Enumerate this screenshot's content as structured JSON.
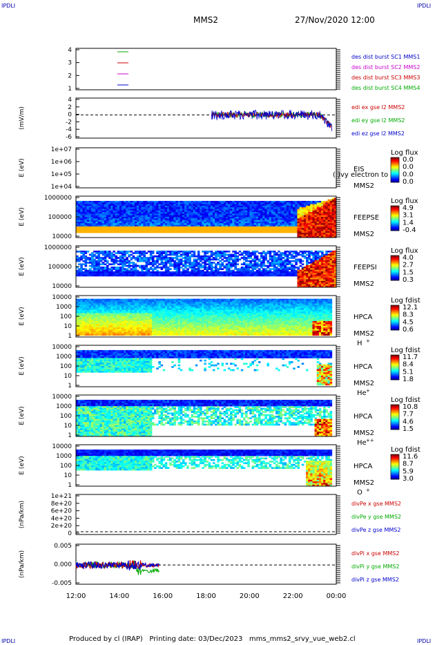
{
  "corners": {
    "tl": "IPDLI",
    "tr": "IPDLI",
    "bl": "IPDLI",
    "br": "IPDLI"
  },
  "header": {
    "mission": "MMS2",
    "datetime": "27/Nov/2020 12:00"
  },
  "footer": {
    "produced_by": "Produced by cl (IRAP)",
    "printing_date": "Printing date: 03/Dec/2023",
    "filename": "mms_mms2_srvy_vue_web2.cl"
  },
  "colors": {
    "blue": "#0000cc",
    "red": "#cc0000",
    "green": "#00aa00",
    "magenta": "#cc00cc"
  },
  "chart_data": [
    {
      "type": "line",
      "id": "des",
      "ylabel": "",
      "yticks": [
        "4",
        "3",
        "2",
        "1"
      ],
      "legend": [
        {
          "name": "des dist burst SC1 MMS1",
          "color": "#0000cc"
        },
        {
          "name": "des dist burst SC2 MMS2",
          "color": "#cc00cc"
        },
        {
          "name": "des dist burst SC3 MMS3",
          "color": "#cc0000"
        },
        {
          "name": "des dist burst SC4 MMS4",
          "color": "#00aa00"
        }
      ]
    },
    {
      "type": "line",
      "id": "edi",
      "ylabel": "(mV/m)",
      "yticks": [
        "4",
        "2",
        "0",
        "-2",
        "-4",
        "-6"
      ],
      "series": [
        {
          "name": "edi ex gse l2 MMS2",
          "color": "#cc0000"
        },
        {
          "name": "edi ey gse l2 MMS2",
          "color": "#00aa00"
        },
        {
          "name": "edi ez gse l2 MMS2",
          "color": "#0000cc"
        }
      ],
      "data_start_hour": 18.25,
      "data_end_hour": 23.8
    },
    {
      "type": "heatmap",
      "id": "eis",
      "ylabel": "E (eV)",
      "yticks": [
        "1e+07",
        "1e+06",
        "1e+05",
        "1e+04"
      ],
      "labels": [
        "EIS",
        "MMS2"
      ],
      "overflow_label": "( )vy electron to",
      "colorbar_title": "Log flux",
      "colorbar_ticks": [
        "0.0",
        "0.0",
        "0.0",
        "0.0"
      ]
    },
    {
      "type": "heatmap",
      "id": "feepse",
      "ylabel": "E (eV)",
      "yticks": [
        "1000000",
        "100000",
        "10000"
      ],
      "labels": [
        "FEEPSE",
        "MMS2"
      ],
      "colorbar_title": "Log flux",
      "colorbar_ticks": [
        "4.9",
        "3.1",
        "1.4",
        "-0.4"
      ]
    },
    {
      "type": "heatmap",
      "id": "feepsi",
      "ylabel": "E (eV)",
      "yticks": [
        "1000000",
        "100000",
        "10000"
      ],
      "labels": [
        "FEEPSI",
        "MMS2"
      ],
      "colorbar_title": "Log flux",
      "colorbar_ticks": [
        "4.0",
        "2.7",
        "1.5",
        "0.3"
      ]
    },
    {
      "type": "heatmap",
      "id": "hpca_h",
      "ylabel": "E (eV)",
      "yticks": [
        "10000",
        "1000",
        "100",
        "10",
        "1"
      ],
      "labels": [
        "HPCA",
        "MMS2"
      ],
      "species": "H",
      "charge": "+",
      "colorbar_title": "Log fdist",
      "colorbar_ticks": [
        "12.1",
        "8.3",
        "4.5",
        "0.6"
      ]
    },
    {
      "type": "heatmap",
      "id": "hpca_he",
      "ylabel": "E (eV)",
      "yticks": [
        "10000",
        "1000",
        "100",
        "10",
        "1"
      ],
      "labels": [
        "HPCA",
        "MMS2"
      ],
      "species": "He",
      "charge": "+",
      "colorbar_title": "Log fdist",
      "colorbar_ticks": [
        "11.7",
        "8.4",
        "5.1",
        "1.8"
      ]
    },
    {
      "type": "heatmap",
      "id": "hpca_hepp",
      "ylabel": "E (eV)",
      "yticks": [
        "10000",
        "1000",
        "100",
        "10",
        "1"
      ],
      "labels": [
        "HPCA",
        "MMS2"
      ],
      "species": "He",
      "charge": "++",
      "colorbar_title": "Log fdist",
      "colorbar_ticks": [
        "10.8",
        "7.7",
        "4.6",
        "1.5"
      ]
    },
    {
      "type": "heatmap",
      "id": "hpca_o",
      "ylabel": "E (eV)",
      "yticks": [
        "10000",
        "1000",
        "100",
        "10",
        "1"
      ],
      "labels": [
        "HPCA",
        "MMS2"
      ],
      "species": "O",
      "charge": "+",
      "colorbar_title": "Log fdist",
      "colorbar_ticks": [
        "11.6",
        "8.7",
        "5.9",
        "3.0"
      ]
    },
    {
      "type": "line",
      "id": "divpe",
      "ylabel": "(nPa/km)",
      "yticks": [
        "1e+21",
        "8e+20",
        "6e+20",
        "4e+20",
        "2e+20",
        "0"
      ],
      "series": [
        {
          "name": "divPe x gse MMS2",
          "color": "#cc0000"
        },
        {
          "name": "divPe y gse MMS2",
          "color": "#00aa00"
        },
        {
          "name": "divPe z gse MMS2",
          "color": "#0000cc"
        }
      ]
    },
    {
      "type": "line",
      "id": "divpi",
      "ylabel": "(nPa/km)",
      "yticks": [
        "0.005",
        "0.000",
        "-0.005"
      ],
      "series": [
        {
          "name": "divPi x gse MMS2",
          "color": "#cc0000"
        },
        {
          "name": "divPi y gse MMS2",
          "color": "#00aa00"
        },
        {
          "name": "divPi z gse MMS2",
          "color": "#0000cc"
        }
      ],
      "data_start_hour": 12.0,
      "data_end_hour": 15.85
    }
  ],
  "xaxis": {
    "ticks": [
      "12:00",
      "14:00",
      "16:00",
      "18:00",
      "20:00",
      "22:00",
      "00:00"
    ],
    "start_hour": 12,
    "end_hour": 24
  }
}
